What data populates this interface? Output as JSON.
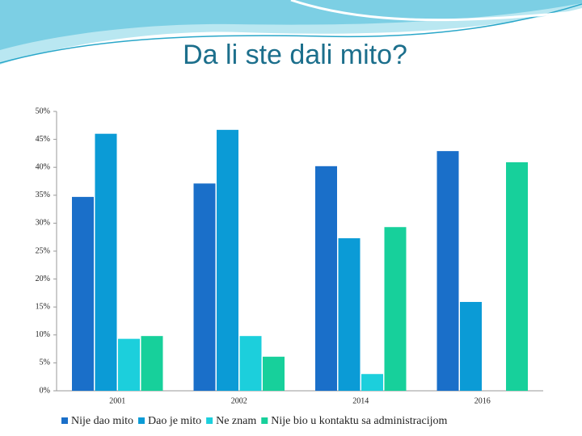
{
  "chart_data": {
    "type": "bar",
    "title": "Da li ste dali mito?",
    "categories": [
      "2001",
      "2002",
      "2014",
      "2016"
    ],
    "series": [
      {
        "name": "Nije dao mito",
        "color": "#1a6fc9",
        "values": [
          34.7,
          37.1,
          40.2,
          42.9
        ]
      },
      {
        "name": "Dao je mito",
        "color": "#0b9bd6",
        "values": [
          46.0,
          46.7,
          27.3,
          15.9
        ]
      },
      {
        "name": "Ne znam",
        "color": "#1ccfdc",
        "values": [
          9.3,
          9.8,
          3.0,
          null
        ]
      },
      {
        "name": "Nije bio u kontaktu sa administracijom",
        "color": "#17d09b",
        "values": [
          9.8,
          6.1,
          29.3,
          40.9
        ]
      }
    ],
    "ylim": [
      0,
      50
    ],
    "yticks": [
      {
        "value": 0,
        "label": "0%"
      },
      {
        "value": 5,
        "label": "5%"
      },
      {
        "value": 10,
        "label": "10%"
      },
      {
        "value": 15,
        "label": "15%"
      },
      {
        "value": 20,
        "label": "20%"
      },
      {
        "value": 25,
        "label": "25%"
      },
      {
        "value": 30,
        "label": "30%"
      },
      {
        "value": 35,
        "label": "35%"
      },
      {
        "value": 40,
        "label": "40%"
      },
      {
        "value": 45,
        "label": "45%"
      },
      {
        "value": 50,
        "label": "50%"
      }
    ],
    "legend": "bottom"
  }
}
